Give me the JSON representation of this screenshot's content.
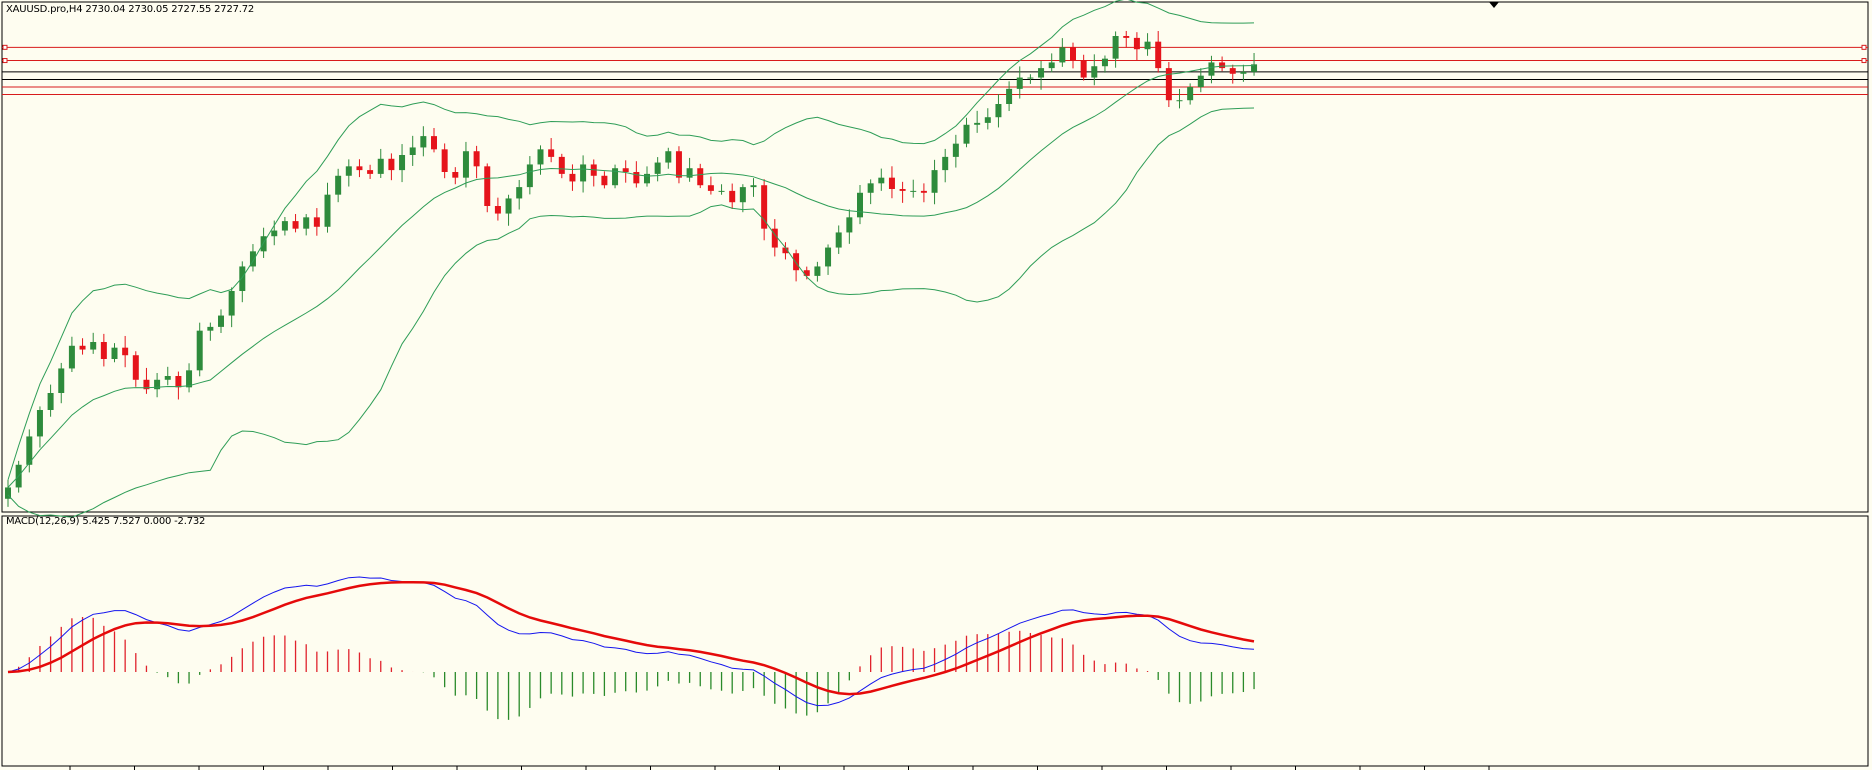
{
  "symbol_header": {
    "symbol": "XAUUSD.pro,H4",
    "ohlc": "2730.04 2730.05 2727.55 2727.72",
    "text": "XAUUSD.pro,H4  2730.04 2730.05 2727.55 2727.72"
  },
  "macd_header": {
    "text": "MACD(12,26,9) 5.425 7.527 0.000 -2.732"
  },
  "colors": {
    "background": "#fefdf0",
    "bull_candle": "#2e8b3c",
    "bear_candle": "#e5141b",
    "bands": "#2e9d57",
    "macd_line": "#1515ee",
    "signal_line": "#e50a0a",
    "hist_positive": "#e0222c",
    "hist_negative": "#2a8a2a",
    "level_red": "#d81b1b",
    "level_black": "#000000"
  },
  "chart_data": [
    {
      "type": "candlestick",
      "name": "XAUUSD.pro H4",
      "series": [
        {
          "name": "Bollinger Bands",
          "values": []
        }
      ],
      "y_range": [
        2520,
        2790
      ],
      "horizontal_levels": [
        {
          "color": "red",
          "value": 2766
        },
        {
          "color": "red",
          "value": 2759
        },
        {
          "color": "black",
          "value": 2753
        },
        {
          "color": "black",
          "value": 2749
        },
        {
          "color": "red",
          "value": 2745
        },
        {
          "color": "red",
          "value": 2741
        }
      ],
      "close_path": [
        2533,
        2545,
        2560,
        2574,
        2583,
        2596,
        2608,
        2606,
        2610,
        2601,
        2607,
        2603,
        2590,
        2585,
        2590,
        2592,
        2586,
        2595,
        2616,
        2618,
        2624,
        2637,
        2650,
        2658,
        2666,
        2669,
        2674,
        2670,
        2676,
        2671,
        2688,
        2698,
        2703,
        2701,
        2699,
        2707,
        2701,
        2709,
        2713,
        2719,
        2712,
        2700,
        2697,
        2711,
        2703,
        2682,
        2678,
        2686,
        2692,
        2704,
        2712,
        2708,
        2699,
        2695,
        2704,
        2698,
        2693,
        2702,
        2700,
        2694,
        2699,
        2705,
        2711,
        2697,
        2702,
        2693,
        2690,
        2690,
        2684,
        2692,
        2693,
        2670,
        2660,
        2657,
        2648,
        2645,
        2650,
        2660,
        2668,
        2676,
        2689,
        2694,
        2697,
        2691,
        2690,
        2690,
        2689,
        2701,
        2708,
        2715,
        2725,
        2726,
        2729,
        2736,
        2744,
        2750,
        2750,
        2755,
        2758,
        2766,
        2759,
        2750,
        2756,
        2760,
        2772,
        2771,
        2765,
        2769,
        2755,
        2738,
        2738,
        2745,
        2751,
        2758,
        2755,
        2752,
        2753,
        2757
      ]
    },
    {
      "type": "line",
      "name": "MACD(12,26,9)",
      "series": [
        {
          "name": "MACD",
          "value": 5.425
        },
        {
          "name": "Signal",
          "value": 7.527
        }
      ],
      "values_shown": [
        5.425,
        7.527,
        0.0,
        -2.732
      ]
    }
  ]
}
